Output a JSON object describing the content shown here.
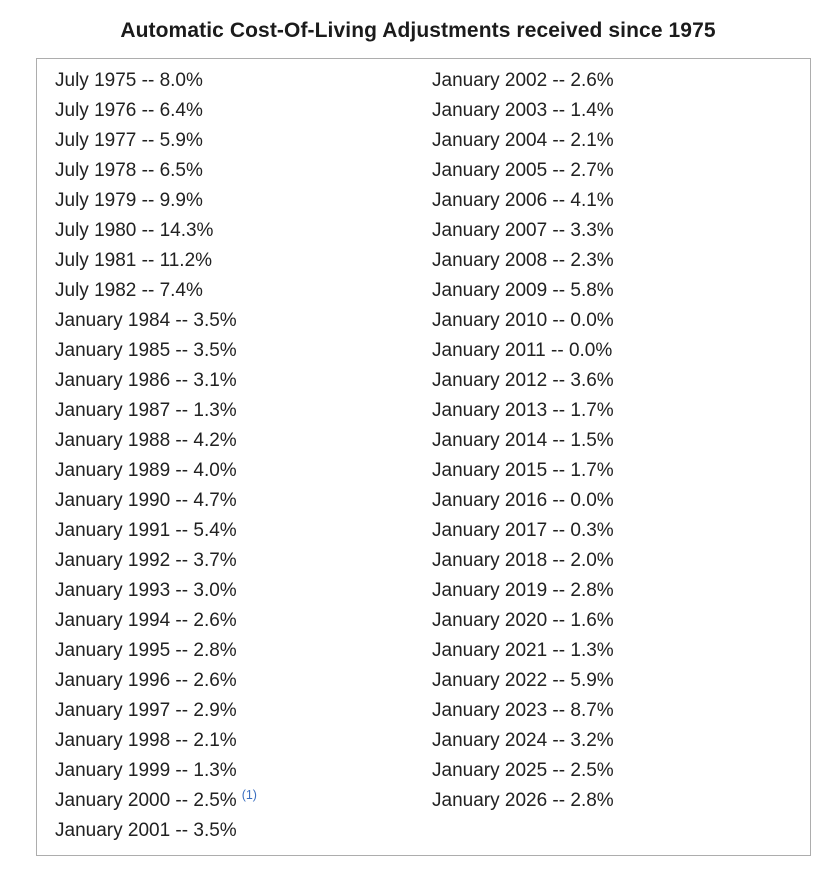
{
  "page": {
    "title": "Automatic Cost-Of-Living Adjustments received since 1975"
  },
  "colors": {
    "text": "#212121",
    "title": "#1b1b1b",
    "box_border": "#adadad",
    "footnote_link": "#3b6fc0"
  },
  "cola": {
    "separator": " -- ",
    "column_break": 26,
    "entries": [
      {
        "date": "July 1975",
        "value": "8.0%"
      },
      {
        "date": "July 1976",
        "value": "6.4%"
      },
      {
        "date": "July 1977",
        "value": "5.9%"
      },
      {
        "date": "July 1978",
        "value": "6.5%"
      },
      {
        "date": "July 1979",
        "value": "9.9%"
      },
      {
        "date": "July 1980",
        "value": "14.3%"
      },
      {
        "date": "July 1981",
        "value": "11.2%"
      },
      {
        "date": "July 1982",
        "value": "7.4%"
      },
      {
        "date": "January 1984",
        "value": "3.5%"
      },
      {
        "date": "January 1985",
        "value": "3.5%"
      },
      {
        "date": "January 1986",
        "value": "3.1%"
      },
      {
        "date": "January 1987",
        "value": "1.3%"
      },
      {
        "date": "January 1988",
        "value": "4.2%"
      },
      {
        "date": "January 1989",
        "value": "4.0%"
      },
      {
        "date": "January 1990",
        "value": "4.7%"
      },
      {
        "date": "January 1991",
        "value": "5.4%"
      },
      {
        "date": "January 1992",
        "value": "3.7%"
      },
      {
        "date": "January 1993",
        "value": "3.0%"
      },
      {
        "date": "January 1994",
        "value": "2.6%"
      },
      {
        "date": "January 1995",
        "value": "2.8%"
      },
      {
        "date": "January 1996",
        "value": "2.6%"
      },
      {
        "date": "January 1997",
        "value": "2.9%"
      },
      {
        "date": "January 1998",
        "value": "2.1%"
      },
      {
        "date": "January 1999",
        "value": "1.3%"
      },
      {
        "date": "January 2000",
        "value": "2.5%",
        "footnote": "(1)"
      },
      {
        "date": "January 2001",
        "value": "3.5%"
      },
      {
        "date": "January 2002",
        "value": "2.6%"
      },
      {
        "date": "January 2003",
        "value": "1.4%"
      },
      {
        "date": "January 2004",
        "value": "2.1%"
      },
      {
        "date": "January 2005",
        "value": "2.7%"
      },
      {
        "date": "January 2006",
        "value": "4.1%"
      },
      {
        "date": "January 2007",
        "value": "3.3%"
      },
      {
        "date": "January 2008",
        "value": "2.3%"
      },
      {
        "date": "January 2009",
        "value": "5.8%"
      },
      {
        "date": "January 2010",
        "value": "0.0%"
      },
      {
        "date": "January 2011",
        "value": "0.0%"
      },
      {
        "date": "January 2012",
        "value": "3.6%"
      },
      {
        "date": "January 2013",
        "value": "1.7%"
      },
      {
        "date": "January 2014",
        "value": "1.5%"
      },
      {
        "date": "January 2015",
        "value": "1.7%"
      },
      {
        "date": "January 2016",
        "value": "0.0%"
      },
      {
        "date": "January 2017",
        "value": "0.3%"
      },
      {
        "date": "January 2018",
        "value": "2.0%"
      },
      {
        "date": "January 2019",
        "value": "2.8%"
      },
      {
        "date": "January 2020",
        "value": "1.6%"
      },
      {
        "date": "January 2021",
        "value": "1.3%"
      },
      {
        "date": "January 2022",
        "value": "5.9%"
      },
      {
        "date": "January 2023",
        "value": "8.7%"
      },
      {
        "date": "January 2024",
        "value": "3.2%"
      },
      {
        "date": "January 2025",
        "value": "2.5%"
      },
      {
        "date": "January 2026",
        "value": "2.8%"
      }
    ]
  }
}
